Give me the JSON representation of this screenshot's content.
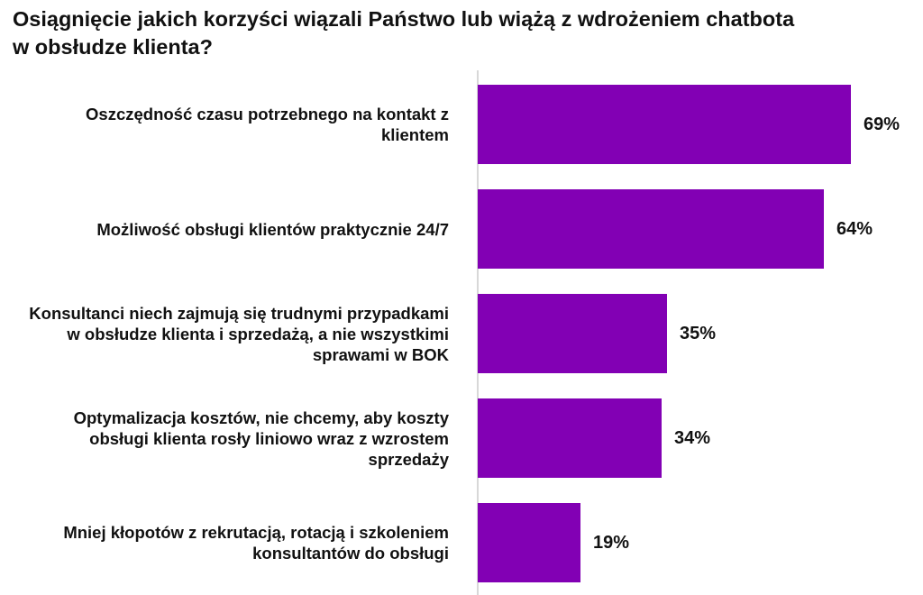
{
  "chart_data": {
    "type": "bar",
    "orientation": "horizontal",
    "title": "Osiągnięcie jakich korzyści wiązali Państwo lub wiążą z wdrożeniem chatbota\nw obsłudze klienta?",
    "categories": [
      "Oszczędność czasu potrzebnego na kontakt z klientem",
      "Możliwość obsługi klientów praktycznie 24/7",
      "Konsultanci niech zajmują się trudnymi przypadkami w obsłudze klienta i sprzedażą,  a nie wszystkimi sprawami w BOK",
      "Optymalizacja kosztów, nie chcemy, aby koszty obsługi klienta rosły liniowo wraz z wzrostem sprzedaży",
      "Mniej kłopotów z rekrutacją, rotacją i szkoleniem konsultantów do obsługi"
    ],
    "values": [
      69,
      64,
      35,
      34,
      19
    ],
    "value_labels": [
      "69%",
      "64%",
      "35%",
      "34%",
      "19%"
    ],
    "unit": "%",
    "xlim": [
      0,
      100
    ],
    "bar_color": "#8200b4",
    "axis_color": "#cccccc",
    "grid": false,
    "legend": "none"
  }
}
